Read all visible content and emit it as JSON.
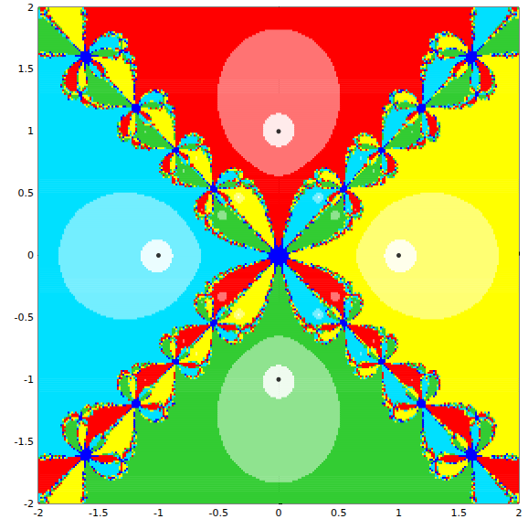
{
  "chart_data": {
    "type": "newton_fractal",
    "xlim": [
      -2,
      2
    ],
    "ylim": [
      -2,
      2
    ],
    "xticks": [
      -2,
      -1.5,
      -1,
      -0.5,
      0,
      0.5,
      1,
      1.5,
      2
    ],
    "yticks": [
      -2,
      -1.5,
      -1,
      -0.5,
      0,
      0.5,
      1,
      1.5,
      2
    ],
    "roots": {
      "x": [
        1,
        0,
        -1,
        0
      ],
      "y": [
        0,
        1,
        0,
        -1
      ]
    },
    "colors": [
      "#ffff00",
      "#ff0000",
      "#00e0ff",
      "#33cc33"
    ],
    "color": "#0000ff",
    "marker": "circle",
    "grid": false
  }
}
